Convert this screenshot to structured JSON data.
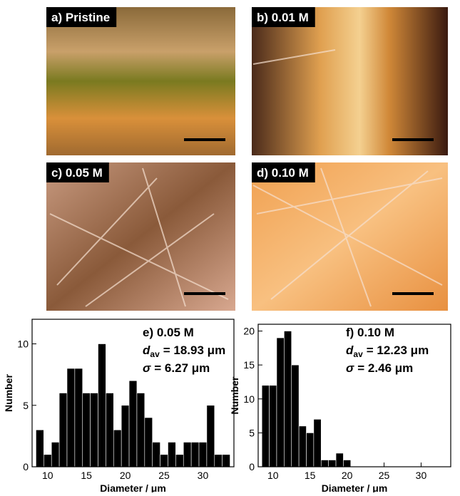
{
  "images": [
    {
      "label": "a) Pristine"
    },
    {
      "label": "b) 0.01 M"
    },
    {
      "label": "c) 0.05 M"
    },
    {
      "label": "d) 0.10 M"
    }
  ],
  "chart_data": [
    {
      "type": "histogram",
      "annotation": "e) 0.05 M",
      "stats": [
        {
          "symbol": "d",
          "subscript": "av",
          "text": "= 18.93 μm"
        },
        {
          "symbol": "σ",
          "text": "= 6.27 μm"
        }
      ],
      "xlabel": "Diameter / μm",
      "ylabel": "Number",
      "color": "#000000",
      "bins": [
        8.5,
        9.5,
        10.5,
        11.5,
        12.5,
        13.5,
        14.5,
        15.5,
        16.5,
        17.5,
        18.5,
        19.5,
        20.5,
        21.5,
        22.5,
        23.5,
        24.5,
        25.5,
        26.5,
        27.5,
        28.5,
        29.5,
        30.5,
        31.5,
        32.5,
        33.5
      ],
      "values": [
        3,
        1,
        2,
        6,
        8,
        8,
        6,
        6,
        10,
        6,
        3,
        5,
        7,
        6,
        4,
        2,
        1,
        2,
        1,
        2,
        2,
        2,
        5,
        1,
        1
      ],
      "xlim": [
        8,
        34
      ],
      "xticks": [
        10,
        15,
        20,
        25,
        30
      ],
      "ylim": [
        0,
        12
      ],
      "yticks": [
        0,
        5,
        10
      ]
    },
    {
      "type": "histogram",
      "annotation": "f) 0.10 M",
      "stats": [
        {
          "symbol": "d",
          "subscript": "av",
          "text": "= 12.23 μm"
        },
        {
          "symbol": "σ",
          "text": "= 2.46 μm"
        }
      ],
      "xlabel": "Diameter / μm",
      "ylabel": "Number",
      "color": "#000000",
      "bins": [
        8.5,
        9.5,
        10.5,
        11.5,
        12.5,
        13.5,
        14.5,
        15.5,
        16.5,
        17.5,
        18.5,
        19.5,
        20.5
      ],
      "values": [
        12,
        12,
        19,
        20,
        15,
        6,
        5,
        7,
        1,
        1,
        2,
        1
      ],
      "xlim": [
        8,
        34
      ],
      "xticks": [
        10,
        15,
        20,
        25,
        30
      ],
      "ylim": [
        0,
        21
      ],
      "yticks": [
        0,
        5,
        10,
        15,
        20
      ]
    }
  ]
}
